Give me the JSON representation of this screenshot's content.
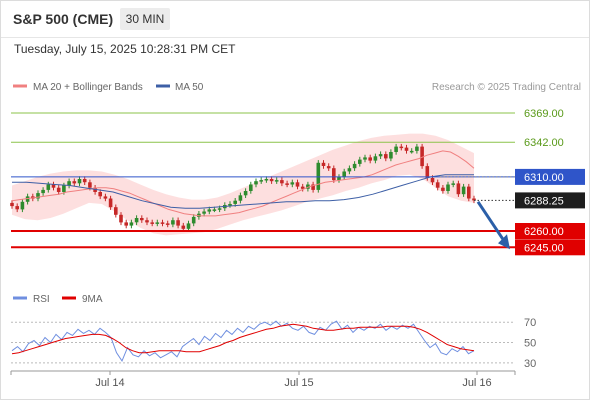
{
  "header": {
    "symbol": "S&P 500 (CME)",
    "timeframe": "30 MIN"
  },
  "datetime": "Tuesday, July 15, 2025 10:28:31 PM CET",
  "legend": {
    "ma20_label": "MA 20 + Bollinger Bands",
    "ma50_label": "MA 50",
    "credit": "Research © 2025 Trading Central",
    "rsi_label": "RSI",
    "ma9_label": "9MA"
  },
  "colors": {
    "up": "#2e8b2e",
    "down": "#c62828",
    "ma20": "#f08080",
    "band": "#fdd9d9",
    "ma50": "#3d5fa6",
    "support": "#e00000",
    "resistance": "#8bc34a",
    "pivot": "#2f55c9",
    "arrow": "#2b5fa8",
    "rsi": "#6f8fe0",
    "rsi_ma": "#e00000"
  },
  "chart_data": [
    {
      "type": "candlestick",
      "ylim": [
        6212,
        6381
      ],
      "x_ticks": [
        "Jul 14",
        "Jul 15",
        "Jul 16"
      ],
      "levels": [
        {
          "label": "6369.00",
          "value": 6369,
          "kind": "resistance"
        },
        {
          "label": "6342.00",
          "value": 6342,
          "kind": "resistance"
        },
        {
          "label": "6310.00",
          "value": 6310,
          "kind": "pivot"
        },
        {
          "label": "6288.25",
          "value": 6288.25,
          "kind": "last"
        },
        {
          "label": "6260.00",
          "value": 6260,
          "kind": "support"
        },
        {
          "label": "6245.00",
          "value": 6245,
          "kind": "support"
        }
      ],
      "candles": [
        6283,
        6280,
        6287,
        6292,
        6290,
        6295,
        6298,
        6303,
        6300,
        6296,
        6302,
        6306,
        6304,
        6308,
        6305,
        6300,
        6296,
        6292,
        6290,
        6282,
        6275,
        6268,
        6265,
        6268,
        6272,
        6270,
        6268,
        6267,
        6268,
        6267,
        6266,
        6270,
        6265,
        6262,
        6267,
        6273,
        6276,
        6278,
        6280,
        6280,
        6281,
        6284,
        6285,
        6288,
        6293,
        6297,
        6303,
        6306,
        6307,
        6308,
        6306,
        6307,
        6304,
        6303,
        6305,
        6301,
        6299,
        6303,
        6298,
        6323,
        6320,
        6318,
        6307,
        6310,
        6315,
        6318,
        6322,
        6326,
        6328,
        6325,
        6329,
        6331,
        6327,
        6333,
        6338,
        6337,
        6334,
        6334,
        6338,
        6320,
        6309,
        6305,
        6300,
        6297,
        6303,
        6304,
        6294,
        6301,
        6290,
        6288.25
      ],
      "ma20": [
        6288,
        6289,
        6290,
        6291,
        6292,
        6293,
        6294,
        6296,
        6297,
        6298,
        6299,
        6300,
        6300,
        6299,
        6297,
        6295,
        6292,
        6289,
        6286,
        6283,
        6280,
        6278,
        6276,
        6275,
        6274,
        6274,
        6274,
        6275,
        6276,
        6277,
        6279,
        6281,
        6283,
        6286,
        6289,
        6292,
        6295,
        6298,
        6301,
        6303,
        6305,
        6306,
        6307,
        6308,
        6309,
        6310,
        6312,
        6315,
        6318,
        6321,
        6323,
        6325,
        6327,
        6330,
        6332,
        6334,
        6333,
        6329,
        6324,
        6318
      ],
      "bb_upper": [
        6302,
        6306,
        6310,
        6313,
        6315,
        6316,
        6316,
        6315,
        6312,
        6308,
        6303,
        6298,
        6294,
        6291,
        6289,
        6289,
        6291,
        6295,
        6300,
        6305,
        6310,
        6315,
        6320,
        6325,
        6330,
        6335,
        6339,
        6343,
        6346,
        6348,
        6349,
        6350,
        6350,
        6348,
        6344,
        6338,
        6332
      ],
      "bb_lower": [
        6275,
        6271,
        6270,
        6272,
        6276,
        6281,
        6286,
        6285,
        6278,
        6270,
        6263,
        6258,
        6256,
        6257,
        6258,
        6259,
        6262,
        6266,
        6270,
        6273,
        6276,
        6279,
        6283,
        6287,
        6290,
        6293,
        6297,
        6300,
        6304,
        6307,
        6311,
        6312,
        6308,
        6300,
        6292,
        6288,
        6286
      ],
      "ma50": [
        6305,
        6305,
        6304,
        6303,
        6302,
        6300,
        6298,
        6296,
        6292,
        6288,
        6285,
        6282,
        6281,
        6281,
        6282,
        6283,
        6284,
        6285,
        6286,
        6287,
        6287,
        6288,
        6288,
        6289,
        6291,
        6294,
        6298,
        6302,
        6306,
        6310,
        6312,
        6312,
        6312
      ]
    },
    {
      "type": "line",
      "title": "RSI",
      "ylim": [
        25,
        80
      ],
      "y_ticks": [
        70,
        50,
        30
      ],
      "rsi": [
        42,
        46,
        41,
        49,
        52,
        47,
        55,
        50,
        58,
        53,
        60,
        57,
        63,
        59,
        62,
        58,
        64,
        60,
        55,
        40,
        32,
        45,
        38,
        36,
        42,
        37,
        40,
        35,
        38,
        41,
        36,
        46,
        50,
        54,
        48,
        56,
        52,
        59,
        55,
        62,
        58,
        64,
        60,
        66,
        63,
        68,
        70,
        67,
        71,
        66,
        69,
        64,
        62,
        66,
        60,
        58,
        65,
        62,
        68,
        71,
        63,
        67,
        60,
        65,
        62,
        66,
        64,
        68,
        62,
        66,
        63,
        67,
        64,
        68,
        60,
        52,
        45,
        49,
        40,
        38,
        44,
        41,
        46,
        39,
        42
      ],
      "rsi_ma": [
        39,
        40,
        42,
        44,
        46,
        48,
        50,
        52,
        54,
        55,
        56,
        57,
        58,
        58,
        57,
        54,
        50,
        45,
        42,
        40,
        40,
        41,
        42,
        42,
        42,
        42,
        41,
        41,
        41,
        43,
        45,
        47,
        50,
        52,
        55,
        57,
        59,
        61,
        63,
        64,
        66,
        67,
        68,
        67,
        66,
        64,
        63,
        62,
        62,
        63,
        64,
        64,
        65,
        65,
        65,
        65,
        66,
        66,
        66,
        66,
        65,
        63,
        60,
        56,
        52,
        48,
        46,
        44,
        43,
        42
      ]
    }
  ]
}
